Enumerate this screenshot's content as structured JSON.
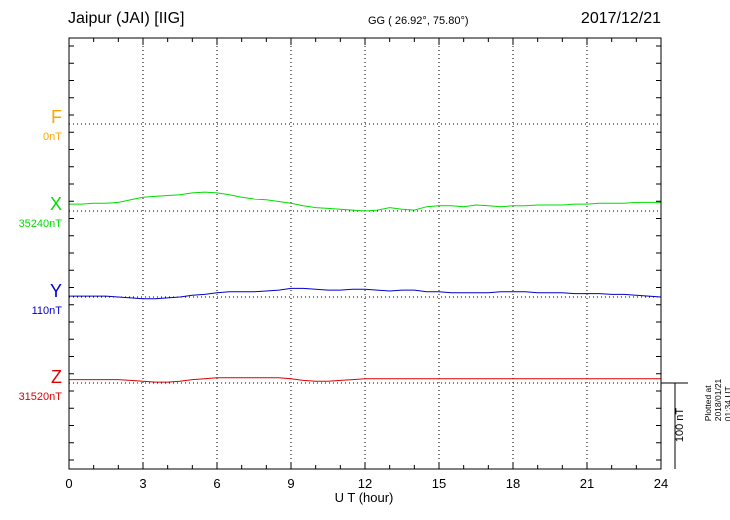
{
  "header": {
    "station": "Jaipur (JAI)  [IIG]",
    "coords": "GG ( 26.92°,  75.80°)",
    "date": "2017/12/21"
  },
  "colors": {
    "F": "#ffa500",
    "X": "#00dd00",
    "Y": "#0000cc",
    "Z": "#dd0000",
    "axis": "#000000"
  },
  "channels": [
    {
      "name": "F",
      "base": "0nT"
    },
    {
      "name": "X",
      "base": "35240nT"
    },
    {
      "name": "Y",
      "base": "110nT"
    },
    {
      "name": "Z",
      "base": "31520nT"
    }
  ],
  "x_ticks": [
    "0",
    "3",
    "6",
    "9",
    "12",
    "15",
    "18",
    "21",
    "24"
  ],
  "scale_bar_label": "100 nT",
  "plotted_note": "Plotted at 2018/01/21 01:34 UT",
  "chart_data": {
    "type": "line",
    "xlabel": "U T (hour)",
    "xlim": [
      0,
      24
    ],
    "grid": true,
    "scale_nT": 100,
    "series": [
      {
        "name": "F",
        "baseline_nT": 0,
        "x": [],
        "values": []
      },
      {
        "name": "X",
        "baseline_nT": 35240,
        "x": [
          0,
          0.5,
          1,
          1.5,
          2,
          2.5,
          3,
          3.5,
          4,
          4.5,
          5,
          5.5,
          6,
          6.5,
          7,
          7.5,
          8,
          8.5,
          9,
          9.5,
          10,
          10.5,
          11,
          11.5,
          12,
          12.5,
          13,
          13.5,
          14,
          14.5,
          15,
          15.5,
          16,
          16.5,
          17,
          17.5,
          18,
          18.5,
          19,
          19.5,
          20,
          20.5,
          21,
          21.5,
          22,
          22.5,
          23,
          23.5,
          24
        ],
        "values": [
          8,
          8,
          9,
          9,
          10,
          13,
          16,
          17,
          18,
          19,
          21,
          22,
          21,
          19,
          16,
          14,
          13,
          11,
          9,
          6,
          4,
          3,
          2,
          1,
          0,
          1,
          4,
          2,
          1,
          5,
          6,
          6,
          5,
          7,
          6,
          5,
          6,
          6,
          7,
          7,
          7,
          8,
          8,
          9,
          9,
          9,
          10,
          10,
          10
        ]
      },
      {
        "name": "Y",
        "baseline_nT": 110,
        "x": [
          0,
          0.5,
          1,
          1.5,
          2,
          2.5,
          3,
          3.5,
          4,
          4.5,
          5,
          5.5,
          6,
          6.5,
          7,
          7.5,
          8,
          8.5,
          9,
          9.5,
          10,
          10.5,
          11,
          11.5,
          12,
          12.5,
          13,
          13.5,
          14,
          14.5,
          15,
          15.5,
          16,
          16.5,
          17,
          17.5,
          18,
          18.5,
          19,
          19.5,
          20,
          20.5,
          21,
          21.5,
          22,
          22.5,
          23,
          23.5,
          24
        ],
        "values": [
          1,
          1,
          1,
          1,
          0,
          -1,
          -2,
          -2,
          -1,
          0,
          2,
          3,
          5,
          6,
          6,
          6,
          7,
          8,
          10,
          10,
          9,
          8,
          8,
          9,
          9,
          8,
          7,
          8,
          8,
          6,
          6,
          5,
          5,
          5,
          5,
          6,
          6,
          6,
          5,
          5,
          5,
          4,
          4,
          4,
          3,
          3,
          2,
          1,
          0
        ]
      },
      {
        "name": "Z",
        "baseline_nT": 31520,
        "x": [
          0,
          0.5,
          1,
          1.5,
          2,
          2.5,
          3,
          3.5,
          4,
          4.5,
          5,
          5.5,
          6,
          6.5,
          7,
          7.5,
          8,
          8.5,
          9,
          9.5,
          10,
          10.5,
          11,
          11.5,
          12,
          12.5,
          13,
          13.5,
          14,
          14.5,
          15,
          15.5,
          16,
          16.5,
          17,
          17.5,
          18,
          18.5,
          19,
          19.5,
          20,
          20.5,
          21,
          21.5,
          22,
          22.5,
          23,
          23.5,
          24
        ],
        "values": [
          4,
          4,
          4,
          4,
          4,
          3,
          2,
          1,
          1,
          2,
          4,
          5,
          6,
          6,
          6,
          6,
          6,
          6,
          5,
          3,
          2,
          2,
          3,
          4,
          5,
          5,
          5,
          5,
          5,
          5,
          5,
          5,
          5,
          5,
          5,
          5,
          5,
          5,
          5,
          5,
          5,
          5,
          5,
          5,
          5,
          5,
          5,
          5,
          5
        ]
      }
    ]
  }
}
